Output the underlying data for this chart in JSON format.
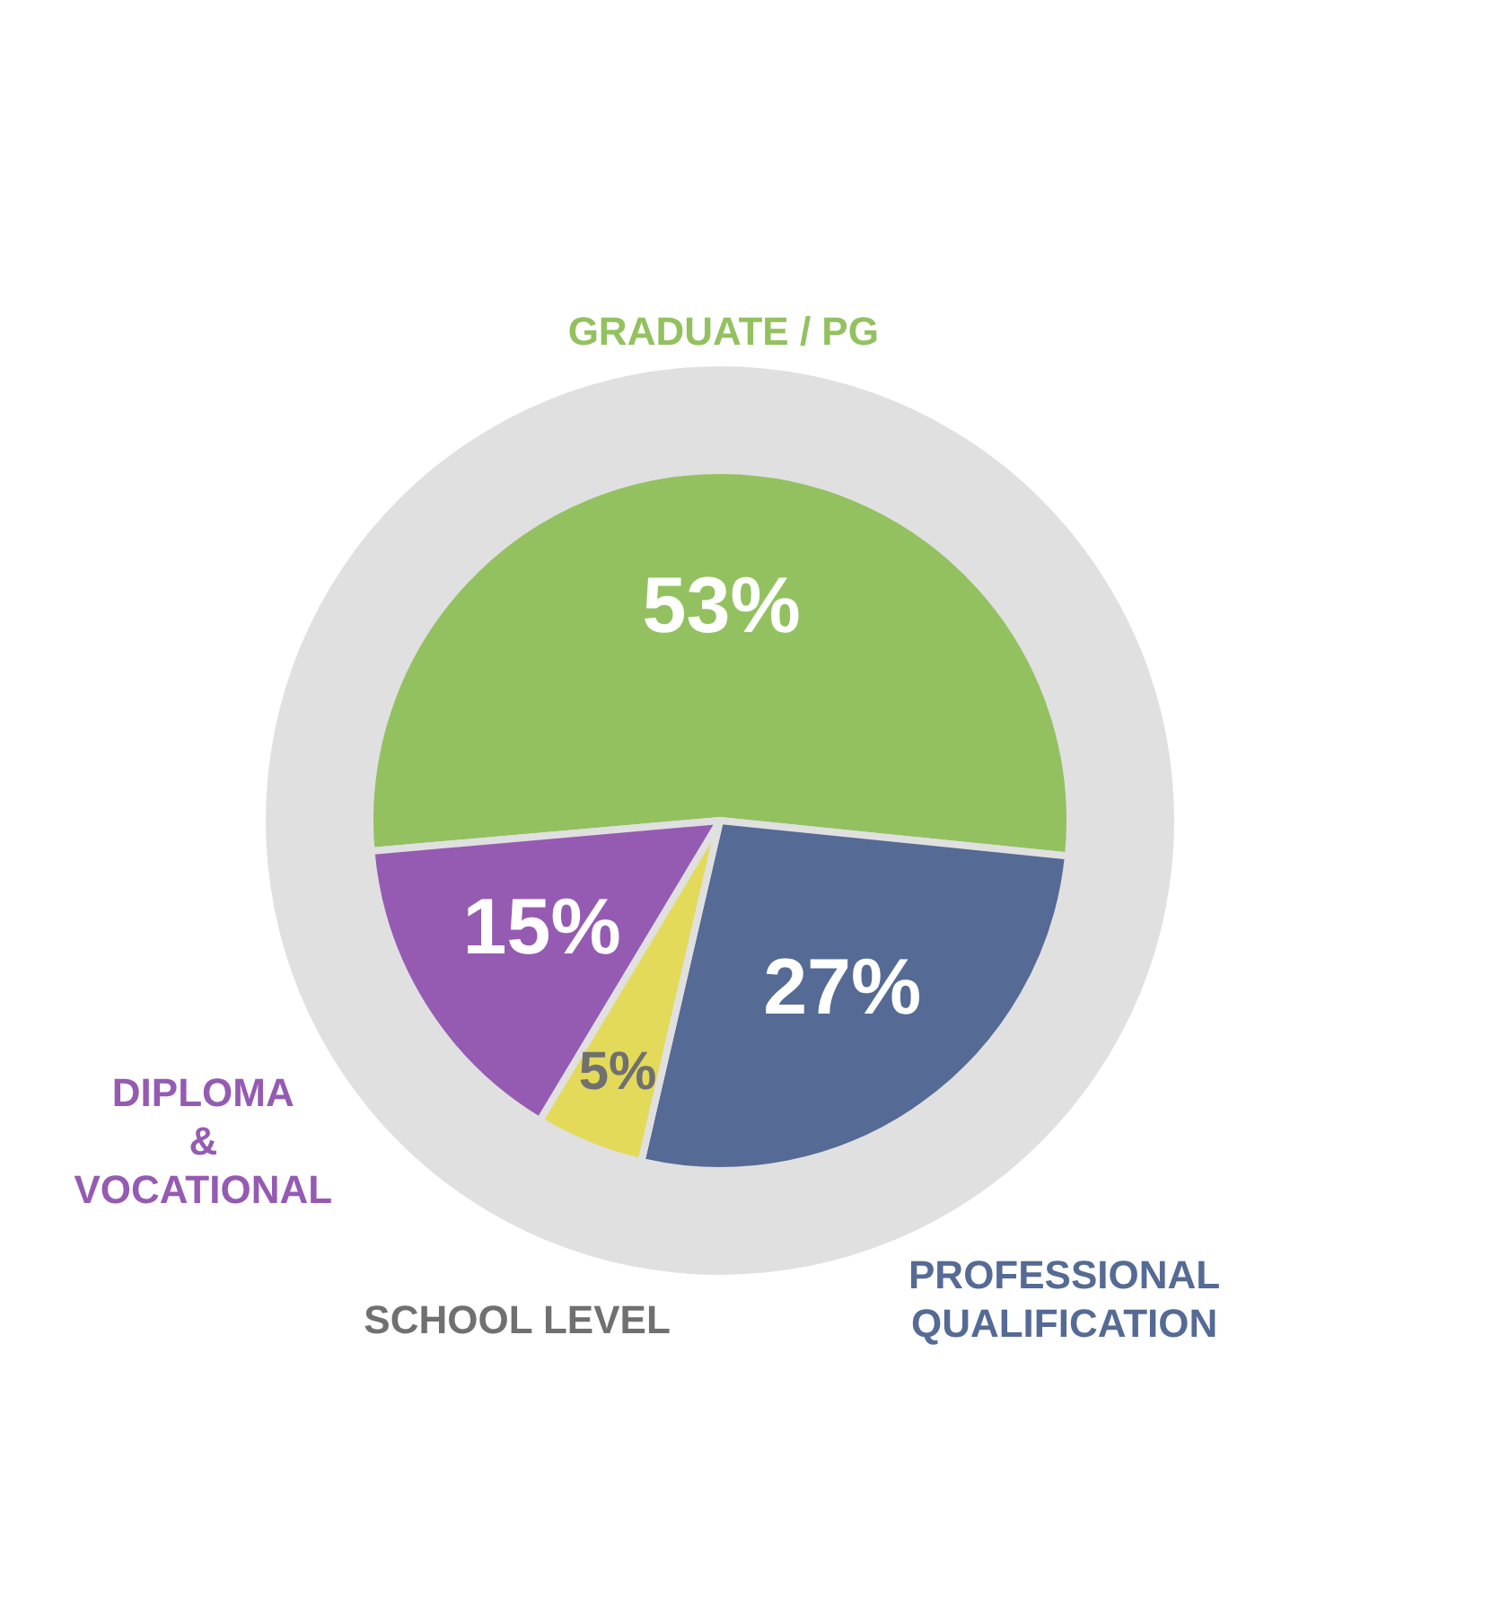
{
  "chart_data": {
    "type": "pie",
    "categories": [
      "GRADUATE / PG",
      "PROFESSIONAL QUALIFICATION",
      "SCHOOL LEVEL",
      "DIPLOMA & VOCATIONAL"
    ],
    "values": [
      53,
      27,
      5,
      15
    ],
    "colors": [
      "#93c160",
      "#556a94",
      "#e3da5a",
      "#955bb2"
    ],
    "value_labels": [
      "53%",
      "27%",
      "5%",
      "15%"
    ]
  }
}
